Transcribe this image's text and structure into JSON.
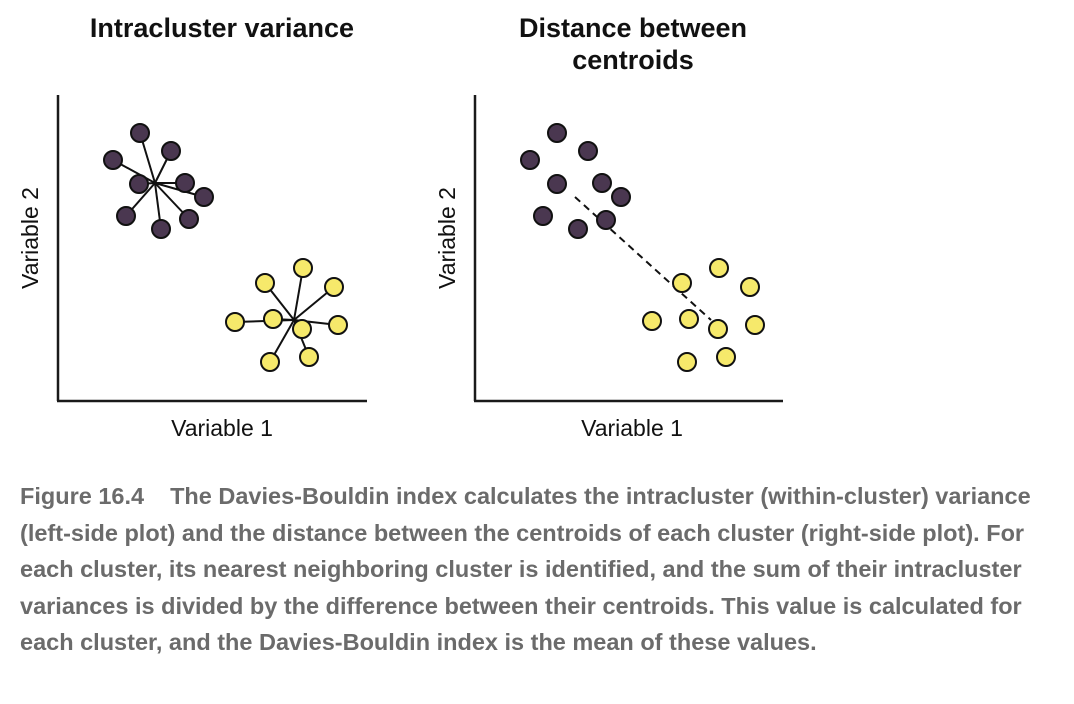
{
  "panels": {
    "left": {
      "title": "Intracluster variance",
      "xlabel": "Variable 1",
      "ylabel": "Variable 2"
    },
    "right": {
      "title_line1": "Distance between",
      "title_line2": "centroids",
      "xlabel": "Variable 1",
      "ylabel": "Variable 2"
    }
  },
  "colors": {
    "cluster_purple": "#4a3750",
    "cluster_yellow": "#f6e96b",
    "stroke": "#111111",
    "caption_text": "#6b6b6b"
  },
  "caption": {
    "figure_number": "Figure 16.4",
    "text": "The Davies-Bouldin index calculates the intracluster (within-cluster) variance (left-side plot) and the distance between the centroids of each cluster (right-side plot). For each cluster, its nearest neighboring cluster is identified, and the sum of their intracluster variances is divided by the difference between their centroids. This value is calculated for each cluster, and the Davies-Bouldin index is the mean of these values."
  }
}
